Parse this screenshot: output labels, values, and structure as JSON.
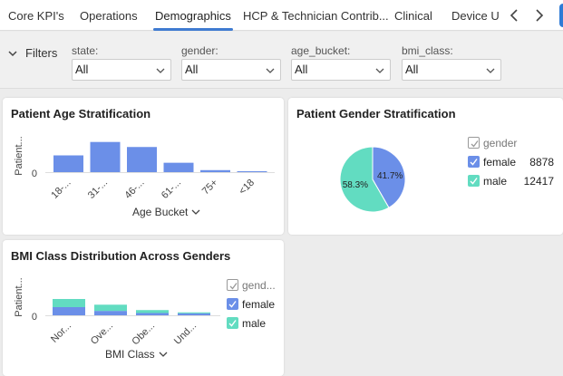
{
  "tabs": [
    {
      "label": "Core KPI's",
      "active": false
    },
    {
      "label": "Operations",
      "active": false
    },
    {
      "label": "Demographics",
      "active": true
    },
    {
      "label": "HCP & Technician Contrib...",
      "active": false
    },
    {
      "label": "Clinical",
      "active": false
    },
    {
      "label": "Device U",
      "active": false
    }
  ],
  "filters": {
    "toggle_label": "Filters",
    "fields": [
      {
        "label": "state:",
        "value": "All"
      },
      {
        "label": "gender:",
        "value": "All"
      },
      {
        "label": "age_bucket:",
        "value": "All"
      },
      {
        "label": "bmi_class:",
        "value": "All"
      }
    ]
  },
  "colors": {
    "female": "#6b8fe8",
    "male": "#62dcc1",
    "accent": "#3f7bd1"
  },
  "age_card": {
    "title": "Patient Age Stratification",
    "ylabel": "Patient...",
    "xlabel": "Age Bucket",
    "zero_tick": "0",
    "chart_data": {
      "type": "bar",
      "categories": [
        "18-...",
        "31-...",
        "46-...",
        "61-...",
        "75+",
        "<18"
      ],
      "values": [
        0.5,
        0.9,
        0.75,
        0.28,
        0.06,
        0.02
      ],
      "ylim": [
        0,
        1
      ]
    }
  },
  "gender_card": {
    "title": "Patient Gender Stratification",
    "legend_header": "gender",
    "chart_data": {
      "type": "pie",
      "labels": [
        "female",
        "male"
      ],
      "values": [
        8878,
        12417
      ],
      "slice_labels": [
        "41.7%",
        "58.3%"
      ]
    },
    "legend": [
      {
        "label": "female",
        "value": "8878"
      },
      {
        "label": "male",
        "value": "12417"
      }
    ]
  },
  "bmi_card": {
    "title": "BMI Class Distribution Across Genders",
    "ylabel": "Patient...",
    "xlabel": "BMI Class",
    "zero_tick": "0",
    "legend_header": "gend...",
    "legend": [
      {
        "label": "female"
      },
      {
        "label": "male"
      }
    ],
    "chart_data": {
      "type": "bar",
      "stacked": true,
      "categories": [
        "Nor...",
        "Ove...",
        "Obe...",
        "Und..."
      ],
      "series": [
        {
          "name": "female",
          "values": [
            0.5,
            0.27,
            0.14,
            0.12
          ]
        },
        {
          "name": "male",
          "values": [
            0.5,
            0.38,
            0.18,
            0.06
          ]
        }
      ],
      "ylim": [
        0,
        1
      ]
    }
  }
}
